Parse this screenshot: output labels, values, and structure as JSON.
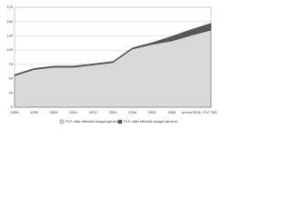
{
  "chart_data": {
    "type": "stacked-area",
    "categories": [
      "1998",
      "1999",
      "2000",
      "2001",
      "2002",
      "2003",
      "2004",
      "2005",
      "2006",
      "prévis.2006",
      "PLF 2007"
    ],
    "series": [
      {
        "name": "PLF mille effectifs budget général",
        "color": "#d9d9d9",
        "values": [
          55,
          66,
          70,
          70,
          74,
          78,
          102,
          110,
          116,
          126,
          135
        ]
      },
      {
        "name": "PLF mille effectifs budget annexe",
        "color": "#595959",
        "values": [
          2,
          2,
          2,
          2,
          2,
          2,
          2,
          3,
          8,
          10,
          12
        ]
      }
    ],
    "ylim": [
      0,
      175
    ],
    "yticks": [
      0,
      25,
      50,
      75,
      100,
      125,
      150,
      175
    ],
    "grid": true,
    "legend": "bottom"
  }
}
